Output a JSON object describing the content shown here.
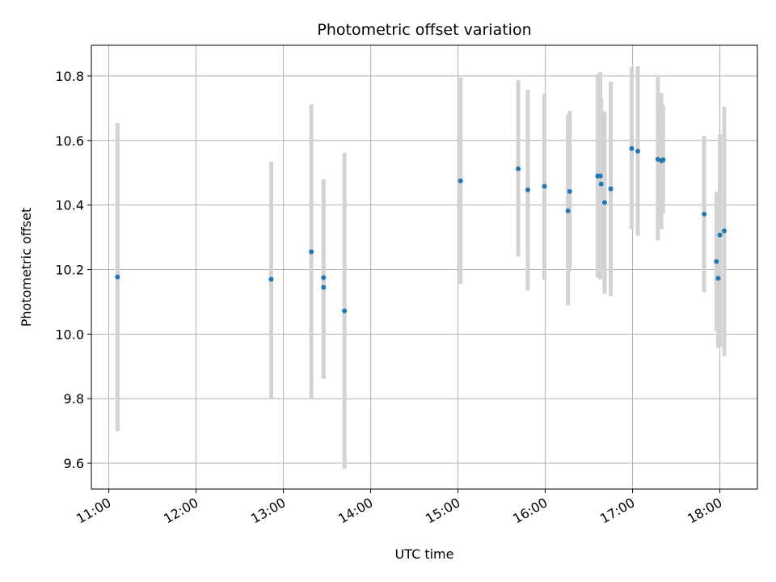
{
  "chart_data": {
    "type": "scatter",
    "title": "Photometric offset variation",
    "xlabel": "UTC time",
    "ylabel": "Photometric offset",
    "xlim_hours": [
      10.8,
      18.43
    ],
    "ylim": [
      9.52,
      10.895
    ],
    "x_ticks": [
      {
        "label": "11:00",
        "value": 11
      },
      {
        "label": "12:00",
        "value": 12
      },
      {
        "label": "13:00",
        "value": 13
      },
      {
        "label": "14:00",
        "value": 14
      },
      {
        "label": "15:00",
        "value": 15
      },
      {
        "label": "16:00",
        "value": 16
      },
      {
        "label": "17:00",
        "value": 17
      },
      {
        "label": "18:00",
        "value": 18
      }
    ],
    "y_ticks": [
      {
        "label": "9.6",
        "value": 9.6
      },
      {
        "label": "9.8",
        "value": 9.8
      },
      {
        "label": "10.0",
        "value": 10.0
      },
      {
        "label": "10.2",
        "value": 10.2
      },
      {
        "label": "10.4",
        "value": 10.4
      },
      {
        "label": "10.6",
        "value": 10.6
      },
      {
        "label": "10.8",
        "value": 10.8
      }
    ],
    "grid": true,
    "colors": {
      "point": "#1f77b4",
      "errorbar": "#d3d3d3",
      "grid": "#b0b0b0"
    },
    "points": [
      {
        "time": 11.1,
        "value": 10.177,
        "err_low": 9.7,
        "err_high": 10.655
      },
      {
        "time": 12.86,
        "value": 10.17,
        "err_low": 9.8,
        "err_high": 10.535
      },
      {
        "time": 13.32,
        "value": 10.255,
        "err_low": 9.8,
        "err_high": 10.712
      },
      {
        "time": 13.46,
        "value": 10.175,
        "err_low": 9.862,
        "err_high": 10.48
      },
      {
        "time": 13.46,
        "value": 10.145,
        "err_low": 9.862,
        "err_high": 10.48
      },
      {
        "time": 13.7,
        "value": 10.072,
        "err_low": 9.582,
        "err_high": 10.562
      },
      {
        "time": 15.03,
        "value": 10.475,
        "err_low": 10.155,
        "err_high": 10.795
      },
      {
        "time": 15.69,
        "value": 10.512,
        "err_low": 10.24,
        "err_high": 10.787
      },
      {
        "time": 15.8,
        "value": 10.447,
        "err_low": 10.135,
        "err_high": 10.757
      },
      {
        "time": 15.99,
        "value": 10.458,
        "err_low": 10.17,
        "err_high": 10.745
      },
      {
        "time": 16.26,
        "value": 10.382,
        "err_low": 10.09,
        "err_high": 10.68
      },
      {
        "time": 16.28,
        "value": 10.442,
        "err_low": 10.195,
        "err_high": 10.692
      },
      {
        "time": 16.6,
        "value": 10.49,
        "err_low": 10.175,
        "err_high": 10.805
      },
      {
        "time": 16.63,
        "value": 10.49,
        "err_low": 10.17,
        "err_high": 10.812
      },
      {
        "time": 16.64,
        "value": 10.465,
        "err_low": 10.2,
        "err_high": 10.73
      },
      {
        "time": 16.68,
        "value": 10.408,
        "err_low": 10.125,
        "err_high": 10.69
      },
      {
        "time": 16.75,
        "value": 10.45,
        "err_low": 10.118,
        "err_high": 10.783
      },
      {
        "time": 16.99,
        "value": 10.575,
        "err_low": 10.325,
        "err_high": 10.828
      },
      {
        "time": 17.06,
        "value": 10.567,
        "err_low": 10.305,
        "err_high": 10.83
      },
      {
        "time": 17.29,
        "value": 10.542,
        "err_low": 10.29,
        "err_high": 10.797
      },
      {
        "time": 17.33,
        "value": 10.537,
        "err_low": 10.325,
        "err_high": 10.747
      },
      {
        "time": 17.35,
        "value": 10.54,
        "err_low": 10.375,
        "err_high": 10.71
      },
      {
        "time": 17.82,
        "value": 10.372,
        "err_low": 10.13,
        "err_high": 10.615
      },
      {
        "time": 17.96,
        "value": 10.225,
        "err_low": 10.01,
        "err_high": 10.44
      },
      {
        "time": 17.98,
        "value": 10.173,
        "err_low": 9.958,
        "err_high": 10.44
      },
      {
        "time": 18.0,
        "value": 10.307,
        "err_low": 9.96,
        "err_high": 10.62
      },
      {
        "time": 18.05,
        "value": 10.32,
        "err_low": 9.932,
        "err_high": 10.705
      }
    ]
  }
}
